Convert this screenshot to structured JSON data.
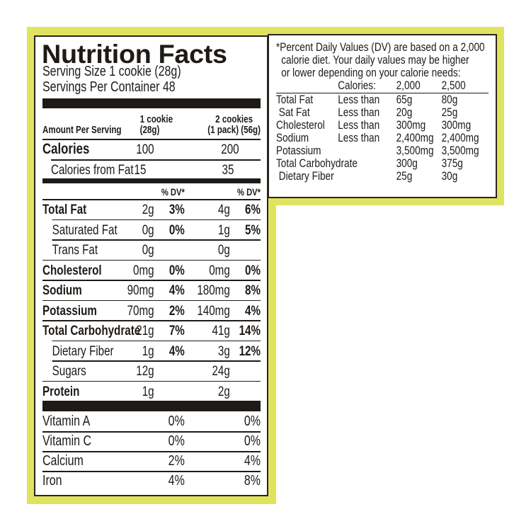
{
  "title": "Nutrition Facts",
  "serving_size": "Serving Size 1 cookie (28g)",
  "servings_per_container": "Servings Per Container 48",
  "header": {
    "amount_per_serving": "Amount Per Serving",
    "col1_line1": "1 cookie",
    "col1_line2": "(28g)",
    "col2_line1": "2 cookies",
    "col2_line2": "(1 pack) (56g)"
  },
  "calories": {
    "label": "Calories",
    "v1": "100",
    "v2": "200"
  },
  "calories_fat": {
    "label": "Calories from Fat",
    "v1": "15",
    "v2": "35"
  },
  "dv_header": "% DV*",
  "nutrients": [
    {
      "label": "Total Fat",
      "a1": "2g",
      "d1": "3%",
      "a2": "4g",
      "d2": "6%",
      "bold": true
    },
    {
      "label": "Saturated Fat",
      "a1": "0g",
      "d1": "0%",
      "a2": "1g",
      "d2": "5%",
      "indent": true
    },
    {
      "label": "Trans Fat",
      "a1": "0g",
      "d1": "",
      "a2": "0g",
      "d2": "",
      "indent": true
    },
    {
      "label": "Cholesterol",
      "a1": "0mg",
      "d1": "0%",
      "a2": "0mg",
      "d2": "0%",
      "bold": true
    },
    {
      "label": "Sodium",
      "a1": "90mg",
      "d1": "4%",
      "a2": "180mg",
      "d2": "8%",
      "bold": true
    },
    {
      "label": "Potassium",
      "a1": "70mg",
      "d1": "2%",
      "a2": "140mg",
      "d2": "4%",
      "bold": true
    },
    {
      "label": "Total Carbohydrate",
      "a1": "21g",
      "d1": "7%",
      "a2": "41g",
      "d2": "14%",
      "bold": true
    },
    {
      "label": "Dietary Fiber",
      "a1": "1g",
      "d1": "4%",
      "a2": "3g",
      "d2": "12%",
      "indent": true
    },
    {
      "label": "Sugars",
      "a1": "12g",
      "d1": "",
      "a2": "24g",
      "d2": "",
      "indent": true
    },
    {
      "label": "Protein",
      "a1": "1g",
      "d1": "",
      "a2": "2g",
      "d2": "",
      "bold": true
    }
  ],
  "vitamins": [
    {
      "label": "Vitamin A",
      "d1": "0%",
      "d2": "0%"
    },
    {
      "label": "Vitamin C",
      "d1": "0%",
      "d2": "0%"
    },
    {
      "label": "Calcium",
      "d1": "2%",
      "d2": "4%"
    },
    {
      "label": "Iron",
      "d1": "4%",
      "d2": "8%"
    }
  ],
  "footnote": {
    "lines": [
      "*Percent Daily Values (DV) are based on a 2,000",
      "calorie diet. Your daily values may be higher",
      "or lower depending on your calorie needs:"
    ],
    "cal_label": "Calories:",
    "cal1": "2,000",
    "cal2": "2,500",
    "rows": [
      {
        "label": "Total Fat",
        "q": "Less than",
        "v1": "65g",
        "v2": "80g"
      },
      {
        "label": " Sat Fat",
        "q": "Less than",
        "v1": "20g",
        "v2": "25g"
      },
      {
        "label": "Cholesterol",
        "q": "Less than",
        "v1": "300mg",
        "v2": "300mg"
      },
      {
        "label": "Sodium",
        "q": "Less than",
        "v1": "2,400mg",
        "v2": "2,400mg"
      },
      {
        "label": "Potassium",
        "q": "",
        "v1": "3,500mg",
        "v2": "3,500mg"
      },
      {
        "label": "Total Carbohydrate",
        "q": "",
        "v1": "300g",
        "v2": "375g"
      },
      {
        "label": " Dietary Fiber",
        "q": "",
        "v1": "25g",
        "v2": "30g"
      }
    ]
  },
  "colors": {
    "border_yellow": "#dfe35e",
    "ink": "#1e1a17"
  }
}
